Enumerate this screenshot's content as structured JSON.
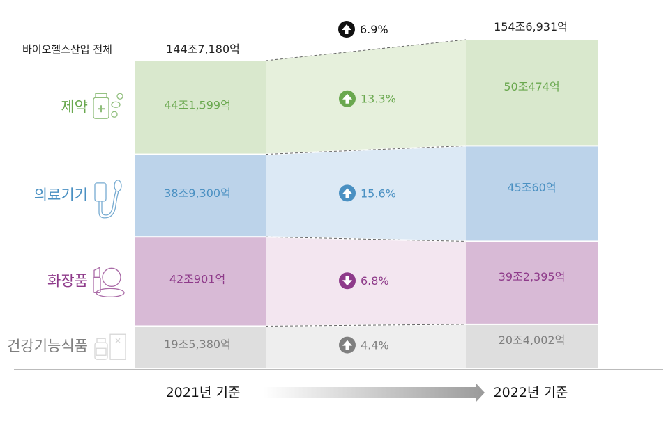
{
  "chart_data": {
    "type": "bar",
    "stacked": true,
    "categories": [
      "2021년 기준",
      "2022년 기준"
    ],
    "total_label": "바이오헬스산업 전체",
    "totals": [
      {
        "value": 1447180,
        "label": "144조7,180억"
      },
      {
        "value": 1546931,
        "label": "154조6,931억"
      }
    ],
    "total_change": {
      "direction": "up",
      "label": "6.9%"
    },
    "series": [
      {
        "name": "제약",
        "values": [
          441599,
          500474
        ],
        "labels": [
          "44조1,599억",
          "50조474억"
        ],
        "change": {
          "direction": "up",
          "label": "13.3%"
        },
        "color": "#d9e8cd",
        "mid_color": "#e6f0dc",
        "text_color": "#6aa84f",
        "icon": "medicine-bottle-pills-icon"
      },
      {
        "name": "의료기기",
        "values": [
          389300,
          450060
        ],
        "labels": [
          "38조9,300억",
          "45조60억"
        ],
        "change": {
          "direction": "up",
          "label": "15.6%"
        },
        "color": "#bcd3ea",
        "mid_color": "#dce9f5",
        "text_color": "#4a90c2",
        "icon": "blood-pressure-monitor-icon"
      },
      {
        "name": "화장품",
        "values": [
          420901,
          392395
        ],
        "labels": [
          "42조901억",
          "39조2,395억"
        ],
        "change": {
          "direction": "down",
          "label": "6.8%"
        },
        "color": "#d8bad6",
        "mid_color": "#f3e6f0",
        "text_color": "#8e3a8a",
        "icon": "cosmetics-compact-icon"
      },
      {
        "name": "건강기능식품",
        "values": [
          195380,
          204002
        ],
        "labels": [
          "19조5,380억",
          "20조4,002억"
        ],
        "change": {
          "direction": "up",
          "label": "4.4%"
        },
        "color": "#dedede",
        "mid_color": "#eeeeee",
        "text_color": "#7f7f7f",
        "icon": "supplement-bottle-icon"
      }
    ],
    "colors": {
      "label_dark": "#222222",
      "axis_line": "#bbbbbb",
      "up_dark": "#111111"
    },
    "grid": false,
    "legend": "left"
  }
}
